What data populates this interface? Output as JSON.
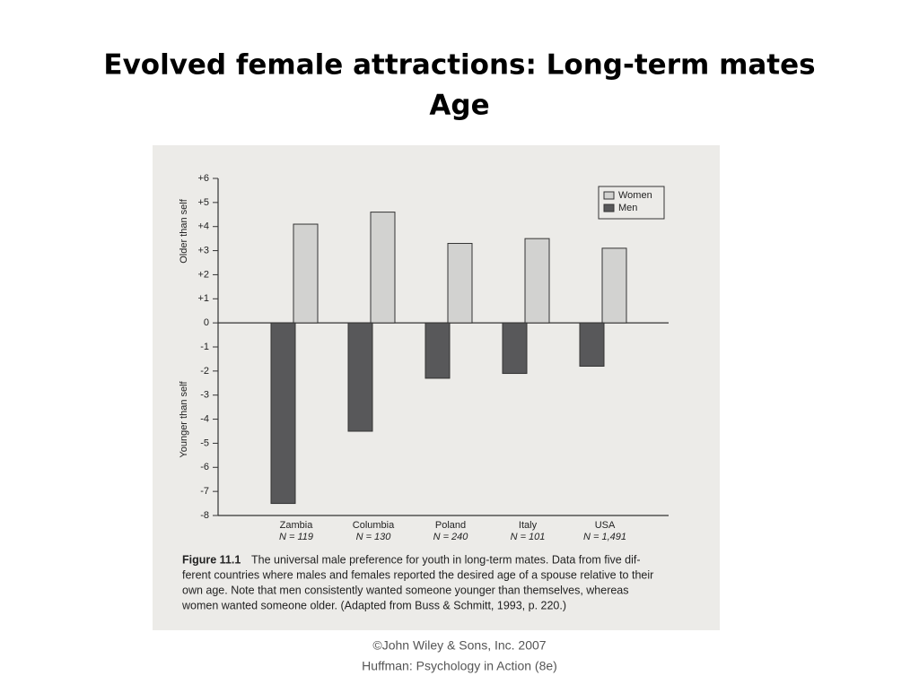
{
  "slide": {
    "title": [
      "Evolved female attractions: Long-term mates",
      "Age"
    ],
    "footer": [
      "©John Wiley & Sons, Inc. 2007",
      "Huffman: Psychology in Action (8e)"
    ]
  },
  "chart_data": {
    "type": "bar",
    "categories": [
      "Zambia",
      "Columbia",
      "Poland",
      "Italy",
      "USA"
    ],
    "sample_sizes": [
      "N = 119",
      "N = 130",
      "N = 240",
      "N = 101",
      "N = 1,491"
    ],
    "series": [
      {
        "name": "Women",
        "color": "#d2d2d0",
        "values": [
          4.1,
          4.6,
          3.3,
          3.5,
          3.1
        ]
      },
      {
        "name": "Men",
        "color": "#58585a",
        "values": [
          -7.5,
          -4.5,
          -2.3,
          -2.1,
          -1.8
        ]
      }
    ],
    "y_axis_labels": [
      "Older than self",
      "Younger than self"
    ],
    "ylim": [
      -8,
      6
    ],
    "yticks": [
      {
        "value": 6,
        "label": "+6"
      },
      {
        "value": 5,
        "label": "+5"
      },
      {
        "value": 4,
        "label": "+4"
      },
      {
        "value": 3,
        "label": "+3"
      },
      {
        "value": 2,
        "label": "+2"
      },
      {
        "value": 1,
        "label": "+1"
      },
      0,
      -1,
      -2,
      -3,
      -4,
      -5,
      -6,
      -7,
      -8
    ],
    "legend": "top-right",
    "caption_label": "Figure 11.1",
    "caption_lines": [
      "The universal male preference for youth in long-term mates. Data from five dif-",
      "ferent countries where males and females reported the desired age of a spouse relative to their",
      "own age. Note that men consistently wanted someone younger than themselves, whereas",
      "women wanted someone older.  (Adapted from Buss & Schmitt, 1993, p. 220.)"
    ]
  }
}
